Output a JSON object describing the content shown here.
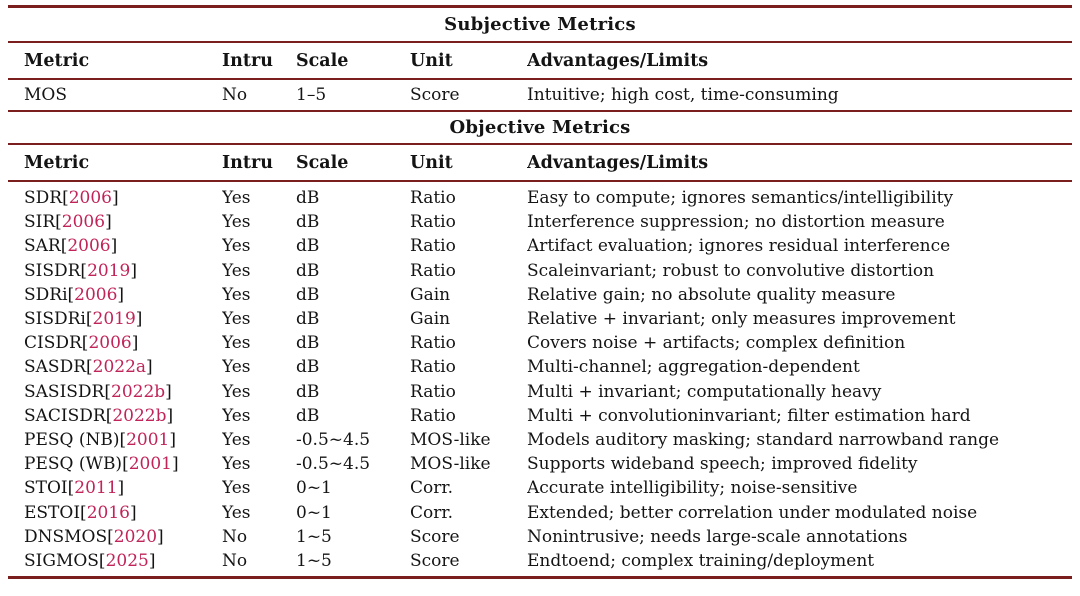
{
  "table": {
    "colors": {
      "rule": "#7a1e1e",
      "citation": "#c02458",
      "text": "#141414",
      "background": "#ffffff"
    },
    "sections": [
      {
        "title": "Subjective Metrics",
        "headers": {
          "metric": "Metric",
          "intru": "Intru",
          "scale": "Scale",
          "unit": "Unit",
          "adv": "Advantages/Limits"
        },
        "rows": [
          {
            "pre": "MOS",
            "year": "",
            "post": "",
            "intru": "No",
            "scale": "1–5",
            "unit": "Score",
            "adv": "Intuitive; high cost, time-consuming"
          }
        ]
      },
      {
        "title": "Objective Metrics",
        "headers": {
          "metric": "Metric",
          "intru": "Intru",
          "scale": "Scale",
          "unit": "Unit",
          "adv": "Advantages/Limits"
        },
        "rows": [
          {
            "pre": "SDR[",
            "year": "2006",
            "post": "]",
            "intru": "Yes",
            "scale": "dB",
            "unit": "Ratio",
            "adv": "Easy to compute; ignores semantics/intelligibility"
          },
          {
            "pre": "SIR[",
            "year": "2006",
            "post": "]",
            "intru": "Yes",
            "scale": "dB",
            "unit": "Ratio",
            "adv": "Interference suppression; no distortion measure"
          },
          {
            "pre": "SAR[",
            "year": "2006",
            "post": "]",
            "intru": "Yes",
            "scale": "dB",
            "unit": "Ratio",
            "adv": "Artifact evaluation; ignores residual interference"
          },
          {
            "pre": "SISDR[",
            "year": "2019",
            "post": "]",
            "intru": "Yes",
            "scale": "dB",
            "unit": "Ratio",
            "adv": "Scaleinvariant; robust to convolutive distortion"
          },
          {
            "pre": "SDRi[",
            "year": "2006",
            "post": "]",
            "intru": "Yes",
            "scale": "dB",
            "unit": "Gain",
            "adv": "Relative gain; no absolute quality measure"
          },
          {
            "pre": "SISDRi[",
            "year": "2019",
            "post": "]",
            "intru": "Yes",
            "scale": "dB",
            "unit": "Gain",
            "adv": "Relative + invariant; only measures improvement"
          },
          {
            "pre": "CISDR[",
            "year": "2006",
            "post": "]",
            "intru": "Yes",
            "scale": "dB",
            "unit": "Ratio",
            "adv": "Covers noise + artifacts; complex definition"
          },
          {
            "pre": "SASDR[",
            "year": "2022a",
            "post": "]",
            "intru": "Yes",
            "scale": "dB",
            "unit": "Ratio",
            "adv": "Multi-channel; aggregation-dependent"
          },
          {
            "pre": "SASISDR[",
            "year": "2022b",
            "post": "]",
            "intru": "Yes",
            "scale": "dB",
            "unit": "Ratio",
            "adv": "Multi + invariant; computationally heavy"
          },
          {
            "pre": "SACISDR[",
            "year": "2022b",
            "post": "]",
            "intru": "Yes",
            "scale": "dB",
            "unit": "Ratio",
            "adv": "Multi + convolutioninvariant; filter estimation hard"
          },
          {
            "pre": "PESQ (NB)[",
            "year": "2001",
            "post": "]",
            "intru": "Yes",
            "scale": "-0.5~4.5",
            "unit": "MOS-like",
            "adv": "Models auditory masking; standard narrowband range"
          },
          {
            "pre": "PESQ (WB)[",
            "year": "2001",
            "post": "]",
            "intru": "Yes",
            "scale": "-0.5~4.5",
            "unit": "MOS-like",
            "adv": "Supports wideband speech; improved fidelity"
          },
          {
            "pre": "STOI[",
            "year": "2011",
            "post": "]",
            "intru": "Yes",
            "scale": "0~1",
            "unit": "Corr.",
            "adv": "Accurate intelligibility; noise-sensitive"
          },
          {
            "pre": "ESTOI[",
            "year": "2016",
            "post": "]",
            "intru": "Yes",
            "scale": "0~1",
            "unit": "Corr.",
            "adv": "Extended; better correlation under modulated noise"
          },
          {
            "pre": "DNSMOS[",
            "year": "2020",
            "post": "]",
            "intru": "No",
            "scale": "1~5",
            "unit": "Score",
            "adv": "Nonintrusive; needs large-scale annotations"
          },
          {
            "pre": "SIGMOS[",
            "year": "2025",
            "post": "]",
            "intru": "No",
            "scale": "1~5",
            "unit": "Score",
            "adv": "Endtoend; complex training/deployment"
          }
        ]
      }
    ]
  }
}
